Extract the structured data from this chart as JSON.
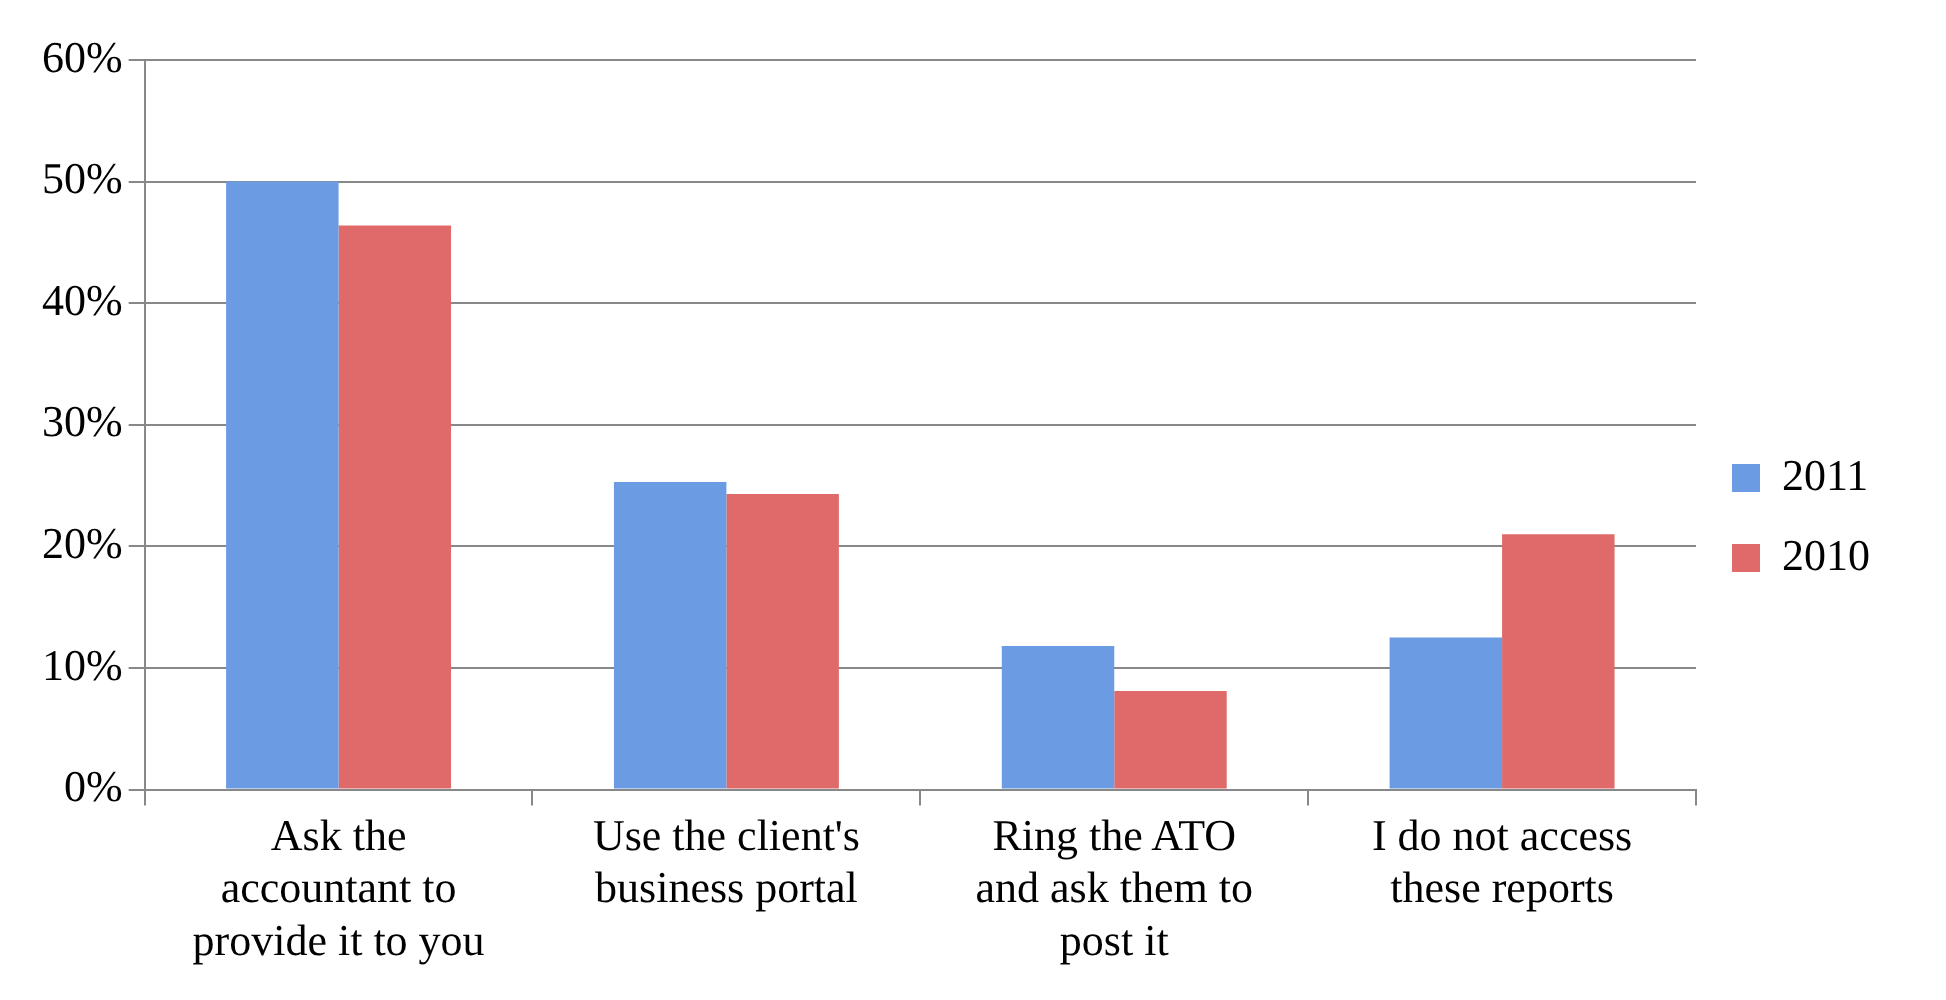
{
  "chart_data": {
    "type": "bar",
    "categories": [
      "Ask the accountant to provide it to you",
      "Use the client's business portal",
      "Ring the ATO and ask them to post it",
      "I do not access these reports"
    ],
    "series": [
      {
        "name": "2011",
        "color": "#6b9be3",
        "values": [
          50.0,
          25.3,
          11.8,
          12.5
        ]
      },
      {
        "name": "2010",
        "color": "#e06a6a",
        "values": [
          46.4,
          24.3,
          8.1,
          21.0
        ]
      }
    ],
    "ylim": [
      0,
      60
    ],
    "yticks": [
      {
        "value": 0,
        "label": "0%"
      },
      {
        "value": 10,
        "label": "10%"
      },
      {
        "value": 20,
        "label": "20%"
      },
      {
        "value": 30,
        "label": "30%"
      },
      {
        "value": 40,
        "label": "40%"
      },
      {
        "value": 50,
        "label": "50%"
      },
      {
        "value": 60,
        "label": "60%"
      }
    ],
    "grid": "y",
    "legend": "right"
  }
}
